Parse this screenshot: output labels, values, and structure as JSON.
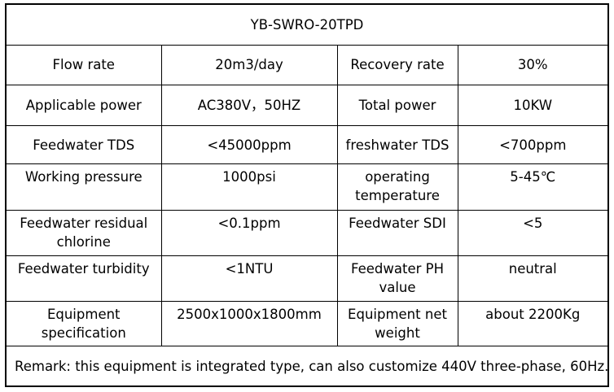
{
  "title": "YB-SWRO-20TPD",
  "rows": [
    {
      "label1": "Flow rate",
      "value1": "20m3/day",
      "label2": "Recovery rate",
      "value2": "30%"
    },
    {
      "label1": "Applicable power",
      "value1": "AC380V，50HZ",
      "label2": "Total power",
      "value2": "10KW"
    },
    {
      "label1": "Feedwater TDS",
      "value1": "<45000ppm",
      "label2": "freshwater TDS",
      "value2": "<700ppm"
    },
    {
      "label1": "Working pressure",
      "value1": "1000psi",
      "label2": "operating temperature",
      "value2": "5-45℃"
    },
    {
      "label1": "Feedwater residual chlorine",
      "value1": "<0.1ppm",
      "label2": "Feedwater SDI",
      "value2": "<5"
    },
    {
      "label1": "Feedwater turbidity",
      "value1": "<1NTU",
      "label2": "Feedwater PH value",
      "value2": "neutral"
    },
    {
      "label1": "Equipment specification",
      "value1": "2500x1000x1800mm",
      "label2": "Equipment net weight",
      "value2": "about 2200Kg"
    }
  ],
  "remark": "Remark:  this equipment is integrated type,  can also customize 440V three-phase, 60Hz."
}
